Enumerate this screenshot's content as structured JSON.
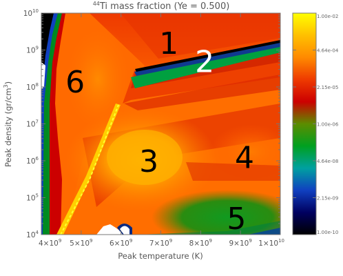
{
  "chart_data": {
    "type": "heatmap",
    "title_sup": "44",
    "title_main": "Ti mass fraction (Ye = 0.500)",
    "xlabel": "Peak temperature (K)",
    "ylabel_main": "Peak density (gr/cm",
    "ylabel_sup": "3",
    "ylabel_end": ")",
    "xlim": [
      4000000000.0,
      10000000000.0
    ],
    "ylim_log10": [
      4,
      10
    ],
    "x_ticks": [
      {
        "value": 4000000000.0,
        "mant": "4×10",
        "exp": "9"
      },
      {
        "value": 5000000000.0,
        "mant": "5×10",
        "exp": "9"
      },
      {
        "value": 6000000000.0,
        "mant": "6×10",
        "exp": "9"
      },
      {
        "value": 7000000000.0,
        "mant": "7×10",
        "exp": "9"
      },
      {
        "value": 8000000000.0,
        "mant": "8×10",
        "exp": "9"
      },
      {
        "value": 9000000000.0,
        "mant": "9×10",
        "exp": "9"
      },
      {
        "value": 10000000000.0,
        "mant": "1×10",
        "exp": "10"
      }
    ],
    "y_ticks": [
      {
        "log10": 4,
        "mant": "10",
        "exp": "4"
      },
      {
        "log10": 5,
        "mant": "10",
        "exp": "5"
      },
      {
        "log10": 6,
        "mant": "10",
        "exp": "6"
      },
      {
        "log10": 7,
        "mant": "10",
        "exp": "7"
      },
      {
        "log10": 8,
        "mant": "10",
        "exp": "8"
      },
      {
        "log10": 9,
        "mant": "10",
        "exp": "9"
      },
      {
        "log10": 10,
        "mant": "10",
        "exp": "10"
      }
    ],
    "colorbar": {
      "scale": "log",
      "range": [
        1e-10,
        0.01
      ],
      "ticks": [
        "1.00e-02",
        "4.64e-04",
        "2.15e-05",
        "1.00e-06",
        "4.64e-08",
        "2.15e-09",
        "1.00e-10"
      ],
      "colors": [
        "#ffff00",
        "#ffc000",
        "#ff8a00",
        "#ee3a00",
        "#cc0000",
        "#5c8c00",
        "#00a020",
        "#00a0a0",
        "#1040c0",
        "#000060",
        "#000000"
      ]
    },
    "regions": [
      {
        "label": "1",
        "T": 7200000000.0,
        "log10_rho": 9.2,
        "color": "#000000"
      },
      {
        "label": "2",
        "T": 8100000000.0,
        "log10_rho": 8.7,
        "color": "#ffffff"
      },
      {
        "label": "3",
        "T": 6700000000.0,
        "log10_rho": 6.0,
        "color": "#000000"
      },
      {
        "label": "4",
        "T": 9100000000.0,
        "log10_rho": 6.1,
        "color": "#000000"
      },
      {
        "label": "5",
        "T": 8900000000.0,
        "log10_rho": 4.45,
        "color": "#000000"
      },
      {
        "label": "6",
        "T": 4850000000.0,
        "log10_rho": 8.15,
        "color": "#000000"
      }
    ]
  }
}
